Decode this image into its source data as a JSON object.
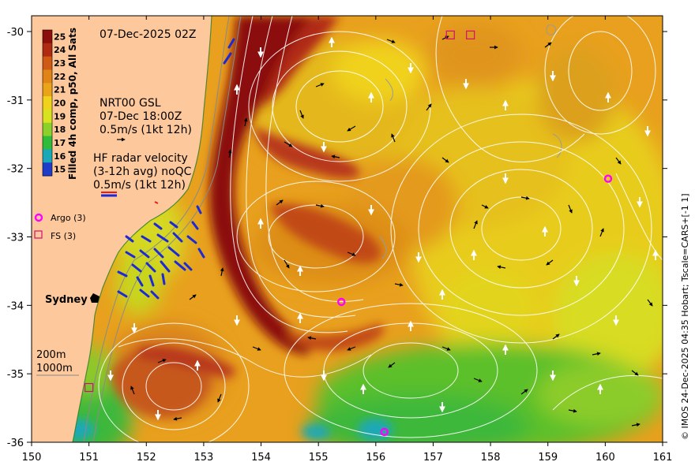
{
  "timestamp": "07-Dec-2025 02Z",
  "colorbar": {
    "label": "Filled 4h comp, p50, All Sats",
    "ticks": [
      {
        "value": 25,
        "color": "#8b0f0a"
      },
      {
        "value": 24,
        "color": "#b02a12"
      },
      {
        "value": 23,
        "color": "#cf5a14"
      },
      {
        "value": 22,
        "color": "#e08418"
      },
      {
        "value": 21,
        "color": "#eaa41a"
      },
      {
        "value": 20,
        "color": "#f0d21c"
      },
      {
        "value": 19,
        "color": "#d8e21e"
      },
      {
        "value": 18,
        "color": "#8cd02a"
      },
      {
        "value": 17,
        "color": "#2ebc3a"
      },
      {
        "value": 16,
        "color": "#1aa8b8"
      },
      {
        "value": 15,
        "color": "#1e3cc8"
      }
    ]
  },
  "nrt": {
    "line1": "NRT00 GSL",
    "line2": "07-Dec 18:00Z",
    "line3": "0.5m/s (1kt 12h)"
  },
  "hf_radar": {
    "line1": "HF radar velocity",
    "line2": "(3-12h avg) noQC",
    "line3": "0.5m/s (1kt 12h)"
  },
  "legend": {
    "argo": "Argo (3)",
    "fs": "FS (3)",
    "argo_color": "#ff00ff",
    "fs_color": "#d01070"
  },
  "place": {
    "city": "Sydney"
  },
  "isobaths": {
    "l200": "200m",
    "l1000": "1000m"
  },
  "credit": "© IMOS 24-Dec-2025 04:35 Hobart; Tscale=CARS+[-1 1]",
  "x_ticks": [
    "150",
    "151",
    "152",
    "153",
    "154",
    "155",
    "156",
    "157",
    "158",
    "159",
    "160",
    "161"
  ],
  "y_ticks": [
    "-30",
    "-31",
    "-32",
    "-33",
    "-34",
    "-35",
    "-36"
  ],
  "argo_floats": [
    {
      "lon": 155.4,
      "lat": -33.95
    },
    {
      "lon": 156.15,
      "lat": -35.85
    },
    {
      "lon": 160.05,
      "lat": -32.15
    }
  ],
  "fs_stations": [
    {
      "lon": 157.3,
      "lat": -30.05
    },
    {
      "lon": 157.65,
      "lat": -30.05
    },
    {
      "lon": 151.0,
      "lat": -35.2
    }
  ]
}
